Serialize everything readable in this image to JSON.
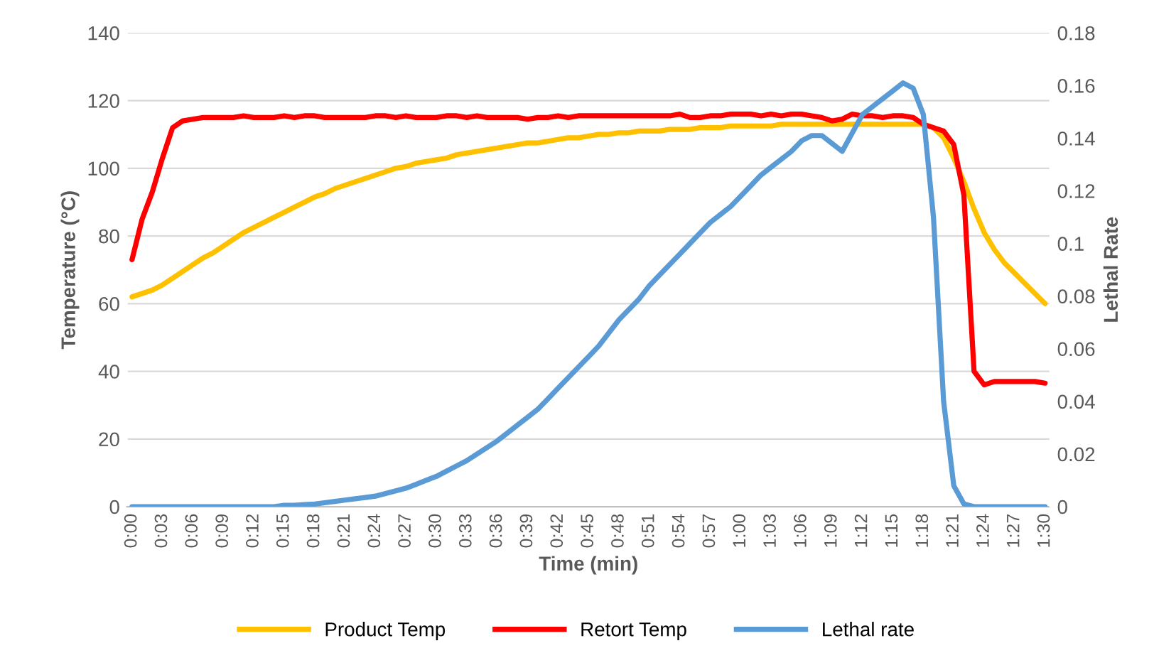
{
  "chart_data": {
    "type": "line",
    "xlabel": "Time (min)",
    "ylabel": "Temperature (°C)",
    "y2label": "Lethal Rate",
    "categories": [
      "0:00",
      null,
      null,
      "0:03",
      null,
      null,
      "0:06",
      null,
      null,
      "0:09",
      null,
      null,
      "0:12",
      null,
      null,
      "0:15",
      null,
      null,
      "0:18",
      null,
      null,
      "0:21",
      null,
      null,
      "0:24",
      null,
      null,
      "0:27",
      null,
      null,
      "0:30",
      null,
      null,
      "0:33",
      null,
      null,
      "0:36",
      null,
      null,
      "0:39",
      null,
      null,
      "0:42",
      null,
      null,
      "0:45",
      null,
      null,
      "0:48",
      null,
      null,
      "0:51",
      null,
      null,
      "0:54",
      null,
      null,
      "0:57",
      null,
      null,
      "1:00",
      null,
      null,
      "1:03",
      null,
      null,
      "1:06",
      null,
      null,
      "1:09",
      null,
      null,
      "1:12",
      null,
      null,
      "1:15",
      null,
      null,
      "1:18",
      null,
      null,
      "1:21",
      null,
      null,
      "1:24",
      null,
      null,
      "1:27",
      null,
      null,
      "1:30"
    ],
    "series": [
      {
        "name": "Product Temp",
        "color": "#ffc000",
        "values": [
          62,
          63,
          64,
          65.5,
          67.5,
          69.5,
          71.5,
          73.5,
          75,
          77,
          79,
          81,
          82.5,
          84,
          85.5,
          87,
          88.5,
          90,
          91.5,
          92.5,
          94,
          95,
          96,
          97,
          98,
          99,
          100,
          100.5,
          101.5,
          102,
          102.5,
          103,
          104,
          104.5,
          105,
          105.5,
          106,
          106.5,
          107,
          107.5,
          107.5,
          108,
          108.5,
          109,
          109,
          109.5,
          110,
          110,
          110.5,
          110.5,
          111,
          111,
          111,
          111.5,
          111.5,
          111.5,
          112,
          112,
          112,
          112.5,
          112.5,
          112.5,
          112.5,
          112.5,
          113,
          113,
          113,
          113,
          113,
          113,
          113,
          113,
          113,
          113,
          113,
          113,
          113,
          113,
          113,
          112,
          109,
          103,
          96,
          88,
          81,
          76,
          72,
          69,
          66,
          63,
          60
        ]
      },
      {
        "name": "Retort Temp",
        "color": "#ff0000",
        "values": [
          73,
          85,
          93,
          103,
          112,
          114,
          114.5,
          115,
          115,
          115,
          115,
          115.5,
          115,
          115,
          115,
          115.5,
          115,
          115.5,
          115.5,
          115,
          115,
          115,
          115,
          115,
          115.5,
          115.5,
          115,
          115.5,
          115,
          115,
          115,
          115.5,
          115.5,
          115,
          115.5,
          115,
          115,
          115,
          115,
          114.5,
          115,
          115,
          115.5,
          115,
          115.5,
          115.5,
          115.5,
          115.5,
          115.5,
          115.5,
          115.5,
          115.5,
          115.5,
          115.5,
          116,
          115,
          115,
          115.5,
          115.5,
          116,
          116,
          116,
          115.5,
          116,
          115.5,
          116,
          116,
          115.5,
          115,
          114,
          114.5,
          116,
          115.5,
          115.5,
          115,
          115.5,
          115.5,
          115,
          113,
          112,
          111,
          107,
          92,
          40,
          36,
          37,
          37,
          37,
          37,
          37,
          36.5
        ]
      },
      {
        "name": "Lethal rate",
        "color": "#5b9bd5",
        "axis": "y2",
        "values": [
          0,
          0,
          0,
          0,
          0,
          0,
          0,
          0,
          0,
          0,
          0,
          0,
          0,
          0,
          0,
          0.0005,
          0.0005,
          0.0008,
          0.001,
          0.0015,
          0.002,
          0.0025,
          0.003,
          0.0035,
          0.004,
          0.005,
          0.006,
          0.007,
          0.0085,
          0.01,
          0.0115,
          0.0135,
          0.0155,
          0.0175,
          0.02,
          0.0225,
          0.025,
          0.028,
          0.031,
          0.034,
          0.037,
          0.041,
          0.045,
          0.049,
          0.053,
          0.057,
          0.061,
          0.066,
          0.071,
          0.075,
          0.079,
          0.084,
          0.088,
          0.092,
          0.096,
          0.1,
          0.104,
          0.108,
          0.111,
          0.114,
          0.118,
          0.122,
          0.126,
          0.129,
          0.132,
          0.135,
          0.139,
          0.141,
          0.141,
          0.138,
          0.135,
          0.142,
          0.149,
          0.152,
          0.155,
          0.158,
          0.161,
          0.159,
          0.149,
          0.11,
          0.04,
          0.008,
          0.001,
          0,
          0,
          0,
          0,
          0,
          0,
          0,
          0
        ]
      }
    ],
    "ylim": [
      0,
      140
    ],
    "yticks": [
      0,
      20,
      40,
      60,
      80,
      100,
      120,
      140
    ],
    "y2lim": [
      0,
      0.18
    ],
    "y2ticks": [
      0,
      0.02,
      0.04,
      0.06,
      0.08,
      0.1,
      0.12,
      0.14,
      0.16,
      0.18
    ],
    "grid": "y",
    "legend": "bottom",
    "marker": "none",
    "line_style": "solid"
  }
}
